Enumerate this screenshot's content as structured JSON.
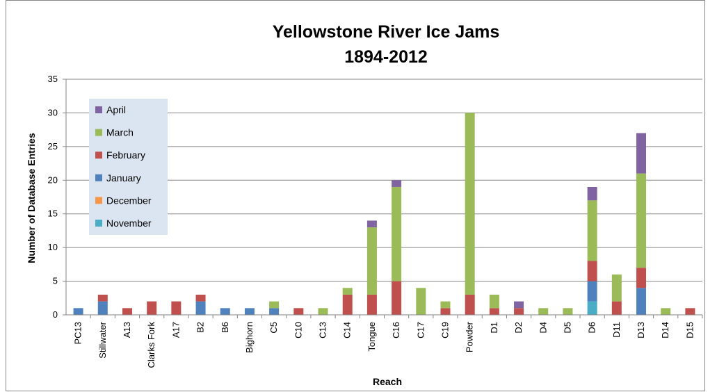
{
  "chart_data": {
    "type": "bar",
    "stacked": true,
    "title": [
      "Yellowstone River Ice Jams",
      "1894-2012"
    ],
    "xlabel": "Reach",
    "ylabel": "Number of Database Entries",
    "ylim": [
      0,
      35
    ],
    "yticks": [
      0,
      5,
      10,
      15,
      20,
      25,
      30,
      35
    ],
    "grid": true,
    "legend_position": "top-left",
    "categories": [
      "PC13",
      "Stillwater",
      "A13",
      "Clarks Fork",
      "A17",
      "B2",
      "B6",
      "Bighorn",
      "C5",
      "C10",
      "C13",
      "C14",
      "Tongue",
      "C16",
      "C17",
      "C19",
      "Powder",
      "D1",
      "D2",
      "D4",
      "D5",
      "D6",
      "D11",
      "D13",
      "D14",
      "D15"
    ],
    "series": [
      {
        "name": "November",
        "color": "#4BACC6",
        "values": [
          0,
          0,
          0,
          0,
          0,
          0,
          0,
          0,
          0,
          0,
          0,
          0,
          0,
          0,
          0,
          0,
          0,
          0,
          0,
          0,
          0,
          2,
          0,
          0,
          0,
          0
        ]
      },
      {
        "name": "December",
        "color": "#F79646",
        "values": [
          0,
          0,
          0,
          0,
          0,
          0,
          0,
          0,
          0,
          0,
          0,
          0,
          0,
          0,
          0,
          0,
          0,
          0,
          0,
          0,
          0,
          0,
          0,
          0,
          0,
          0
        ]
      },
      {
        "name": "January",
        "color": "#4F81BD",
        "values": [
          1,
          2,
          0,
          0,
          0,
          2,
          1,
          1,
          1,
          0,
          0,
          0,
          0,
          0,
          0,
          0,
          0,
          0,
          0,
          0,
          0,
          3,
          0,
          4,
          0,
          0
        ]
      },
      {
        "name": "February",
        "color": "#C0504D",
        "values": [
          0,
          1,
          1,
          2,
          2,
          1,
          0,
          0,
          0,
          1,
          0,
          3,
          3,
          5,
          0,
          1,
          3,
          1,
          1,
          0,
          0,
          3,
          2,
          3,
          0,
          1
        ]
      },
      {
        "name": "March",
        "color": "#9BBB59",
        "values": [
          0,
          0,
          0,
          0,
          0,
          0,
          0,
          0,
          1,
          0,
          1,
          1,
          10,
          14,
          4,
          1,
          27,
          2,
          0,
          1,
          1,
          9,
          4,
          14,
          1,
          0
        ]
      },
      {
        "name": "April",
        "color": "#8064A2",
        "values": [
          0,
          0,
          0,
          0,
          0,
          0,
          0,
          0,
          0,
          0,
          0,
          0,
          1,
          1,
          0,
          0,
          0,
          0,
          1,
          0,
          0,
          2,
          0,
          6,
          0,
          0
        ]
      }
    ],
    "legend_order": [
      "April",
      "March",
      "February",
      "January",
      "December",
      "November"
    ]
  }
}
